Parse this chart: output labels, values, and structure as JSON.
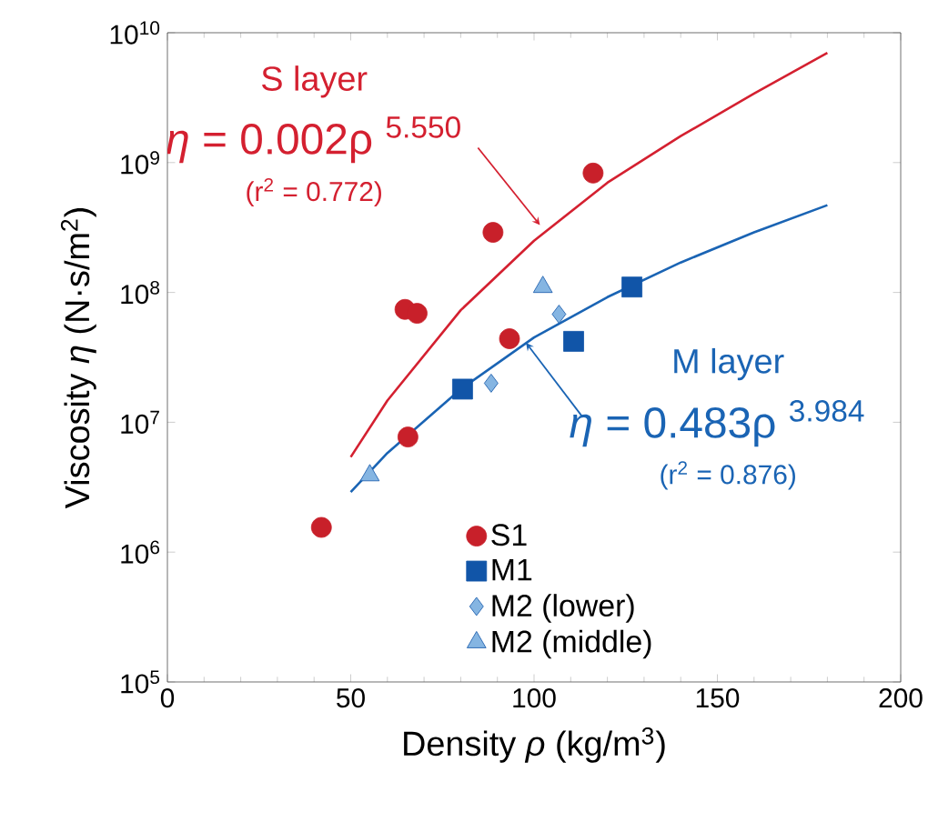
{
  "chart_data": {
    "type": "scatter",
    "xlabel": "Density *ρ*  (kg/m$^{3}$)",
    "ylabel": "Viscosity *η*  (N·s/m$^{2}$)",
    "xlim": [
      0,
      200
    ],
    "xticks": [
      0,
      50,
      100,
      150,
      200
    ],
    "ylim": [
      100000,
      10000000000
    ],
    "log": "y",
    "yticks": [
      {
        "value": 100000,
        "label": "10$^{5}$"
      },
      {
        "value": 1000000,
        "label": "10$^{6}$"
      },
      {
        "value": 10000000,
        "label": "10$^{7}$"
      },
      {
        "value": 100000000,
        "label": "10$^{8}$"
      },
      {
        "value": 1000000000,
        "label": "10$^{9}$"
      },
      {
        "value": 10000000000,
        "label": "10$^{10}$"
      }
    ],
    "legend": "bottom",
    "series": [
      {
        "name": "S1",
        "marker": "circle",
        "color": "#c8202a",
        "x": [
          42,
          65.6,
          64.8,
          68.1,
          93.3,
          88.8,
          116.1
        ],
        "values": [
          1550000,
          7700000,
          74000000,
          69000000,
          44000000,
          290000000,
          830000000
        ]
      },
      {
        "name": "M1",
        "marker": "square",
        "color": "#1155a8",
        "x": [
          80.5,
          110.8,
          126.7
        ],
        "values": [
          18000000,
          42000000,
          110000000
        ]
      },
      {
        "name": "M2 (lower)",
        "marker": "diamond",
        "color": "#85b5e2",
        "x": [
          88.3,
          106.8
        ],
        "values": [
          20000000,
          68000000
        ]
      },
      {
        "name": "M2 (middle)",
        "marker": "triangle",
        "color": "#85b5e2",
        "x": [
          55.2,
          102.4
        ],
        "values": [
          3900000,
          110000000
        ]
      },
      {
        "type": "line",
        "marker": "none",
        "color": "#d42030",
        "x": [
          50,
          60,
          80,
          100,
          120,
          140,
          160,
          180
        ],
        "values": [
          5400000,
          14700000,
          73000000,
          250000000,
          700000000,
          1600000000,
          3400000000,
          7000000000
        ]
      },
      {
        "type": "line",
        "marker": "none",
        "color": "#1a64b4",
        "x": [
          50,
          60,
          80,
          100,
          120,
          140,
          160,
          180
        ],
        "values": [
          2900000,
          5800000,
          18000000,
          45000000,
          92000000,
          170000000,
          290000000,
          470000000
        ]
      }
    ],
    "annotations": [
      "S layer",
      {
        "text": "*η* = 0.002ρ $^{5.550}$",
        "x": 101.6,
        "y": 330000000
      },
      "(r$^{2}$ = 0.772)",
      "M layer",
      {
        "text": "*η* = 0.483ρ $^{3.984}$",
        "x": 97.8,
        "y": 41000000
      },
      "(r$^{2}$ = 0.876)"
    ]
  }
}
